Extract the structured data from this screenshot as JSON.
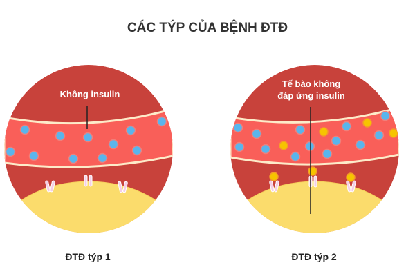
{
  "title": "CÁC TÝP CỦA BỆNH ĐTĐ",
  "panels": [
    {
      "caption": "ĐTĐ týp 1",
      "label_lines": [
        "Không insulin"
      ]
    },
    {
      "caption": "ĐTĐ týp 2",
      "label_lines": [
        "Tế bào không",
        "đáp ứng insulin"
      ]
    }
  ],
  "colors": {
    "tissue": "#c8423b",
    "vessel": "#f95f59",
    "vessel_wall": "#fdebc9",
    "cell": "#fbdc6c",
    "glucose": "#5ab5ec",
    "insulin": "#f6c400",
    "receptor": "#f4cfe6"
  }
}
